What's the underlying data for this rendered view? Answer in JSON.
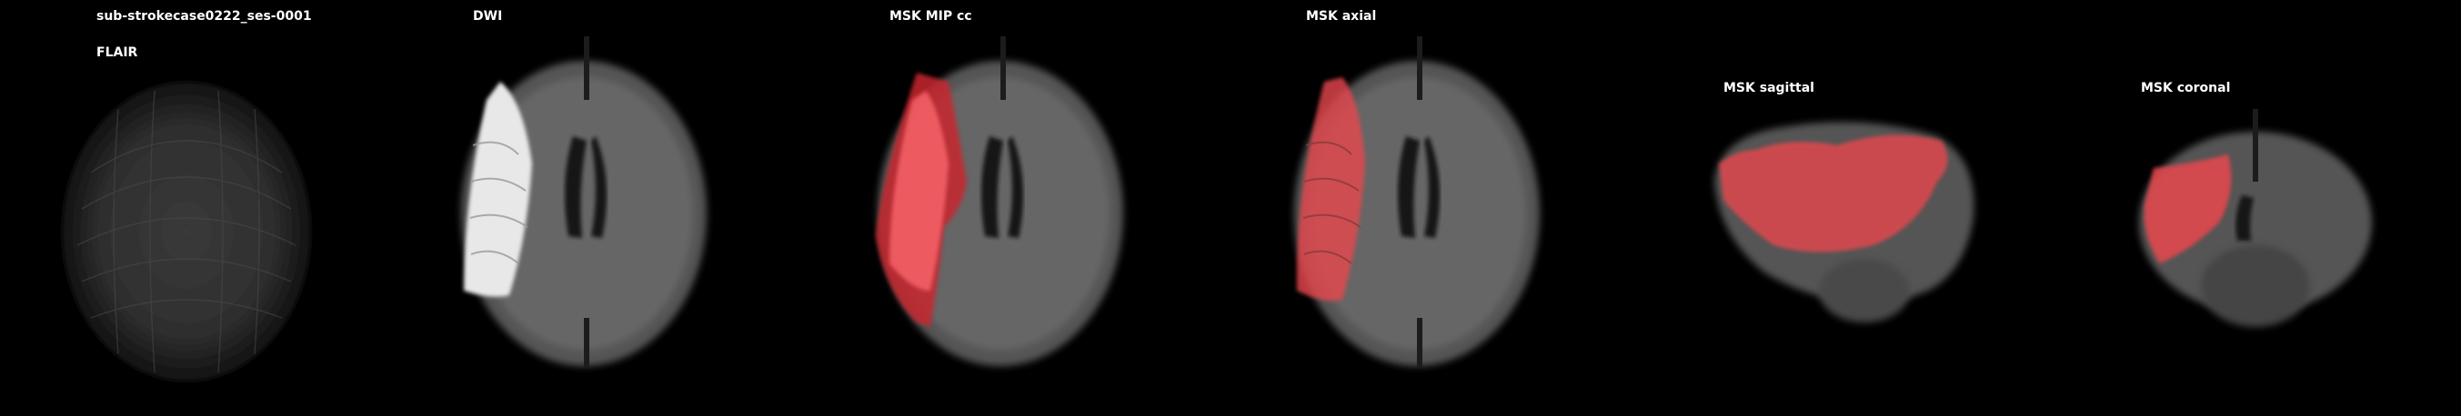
{
  "figure": {
    "subject_title": "sub-strokecase0222_ses-0001",
    "panels": [
      {
        "title": "FLAIR",
        "image": "flair-axial-brain-scan"
      },
      {
        "title": "DWI",
        "image": "dwi-axial-brain-scan"
      },
      {
        "title": "MSK MIP cc",
        "image": "mask-mip-overlay-scan"
      },
      {
        "title": "MSK axial",
        "image": "mask-axial-overlay-scan"
      },
      {
        "title": "MSK sagittal",
        "image": "mask-sagittal-overlay-scan"
      },
      {
        "title": "MSK coronal",
        "image": "mask-coronal-overlay-scan"
      }
    ]
  },
  "colors": {
    "background": "#000000",
    "label": "#ffffff",
    "mask_overlay": "#e8474e"
  }
}
